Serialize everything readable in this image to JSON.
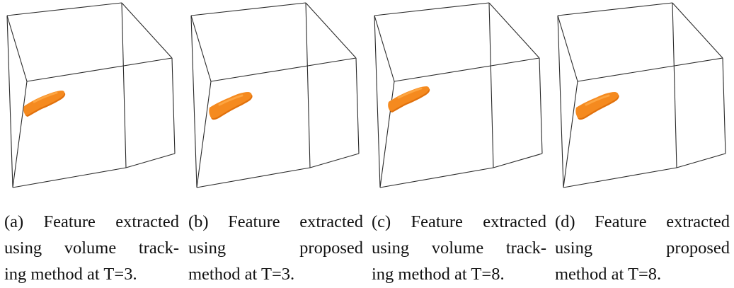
{
  "figure": {
    "panels": [
      {
        "id": "a",
        "label": "(a)",
        "caption_lines": [
          [
            "(a)",
            "Feature",
            "extracted"
          ],
          [
            "using",
            "volume",
            "track-"
          ],
          [
            "ing method at T=3."
          ]
        ],
        "feature_shape": "tracking"
      },
      {
        "id": "b",
        "label": "(b)",
        "caption_lines": [
          [
            "(b)",
            "Feature",
            "extracted"
          ],
          [
            "using",
            "proposed"
          ],
          [
            "method at T=3."
          ]
        ],
        "feature_shape": "proposed"
      },
      {
        "id": "c",
        "label": "(c)",
        "caption_lines": [
          [
            "(c)",
            "Feature",
            "extracted"
          ],
          [
            "using",
            "volume",
            "track-"
          ],
          [
            "ing method at T=8."
          ]
        ],
        "feature_shape": "tracking"
      },
      {
        "id": "d",
        "label": "(d)",
        "caption_lines": [
          [
            "(d)",
            "Feature",
            "extracted"
          ],
          [
            "using",
            "proposed"
          ],
          [
            "method at T=8."
          ]
        ],
        "feature_shape": "proposed"
      }
    ],
    "colors": {
      "box_edge": "#2a2a2a",
      "feature_fill": "#f58a1f",
      "feature_shadow": "#e0700c",
      "feature_highlight": "#ffab4a"
    }
  }
}
